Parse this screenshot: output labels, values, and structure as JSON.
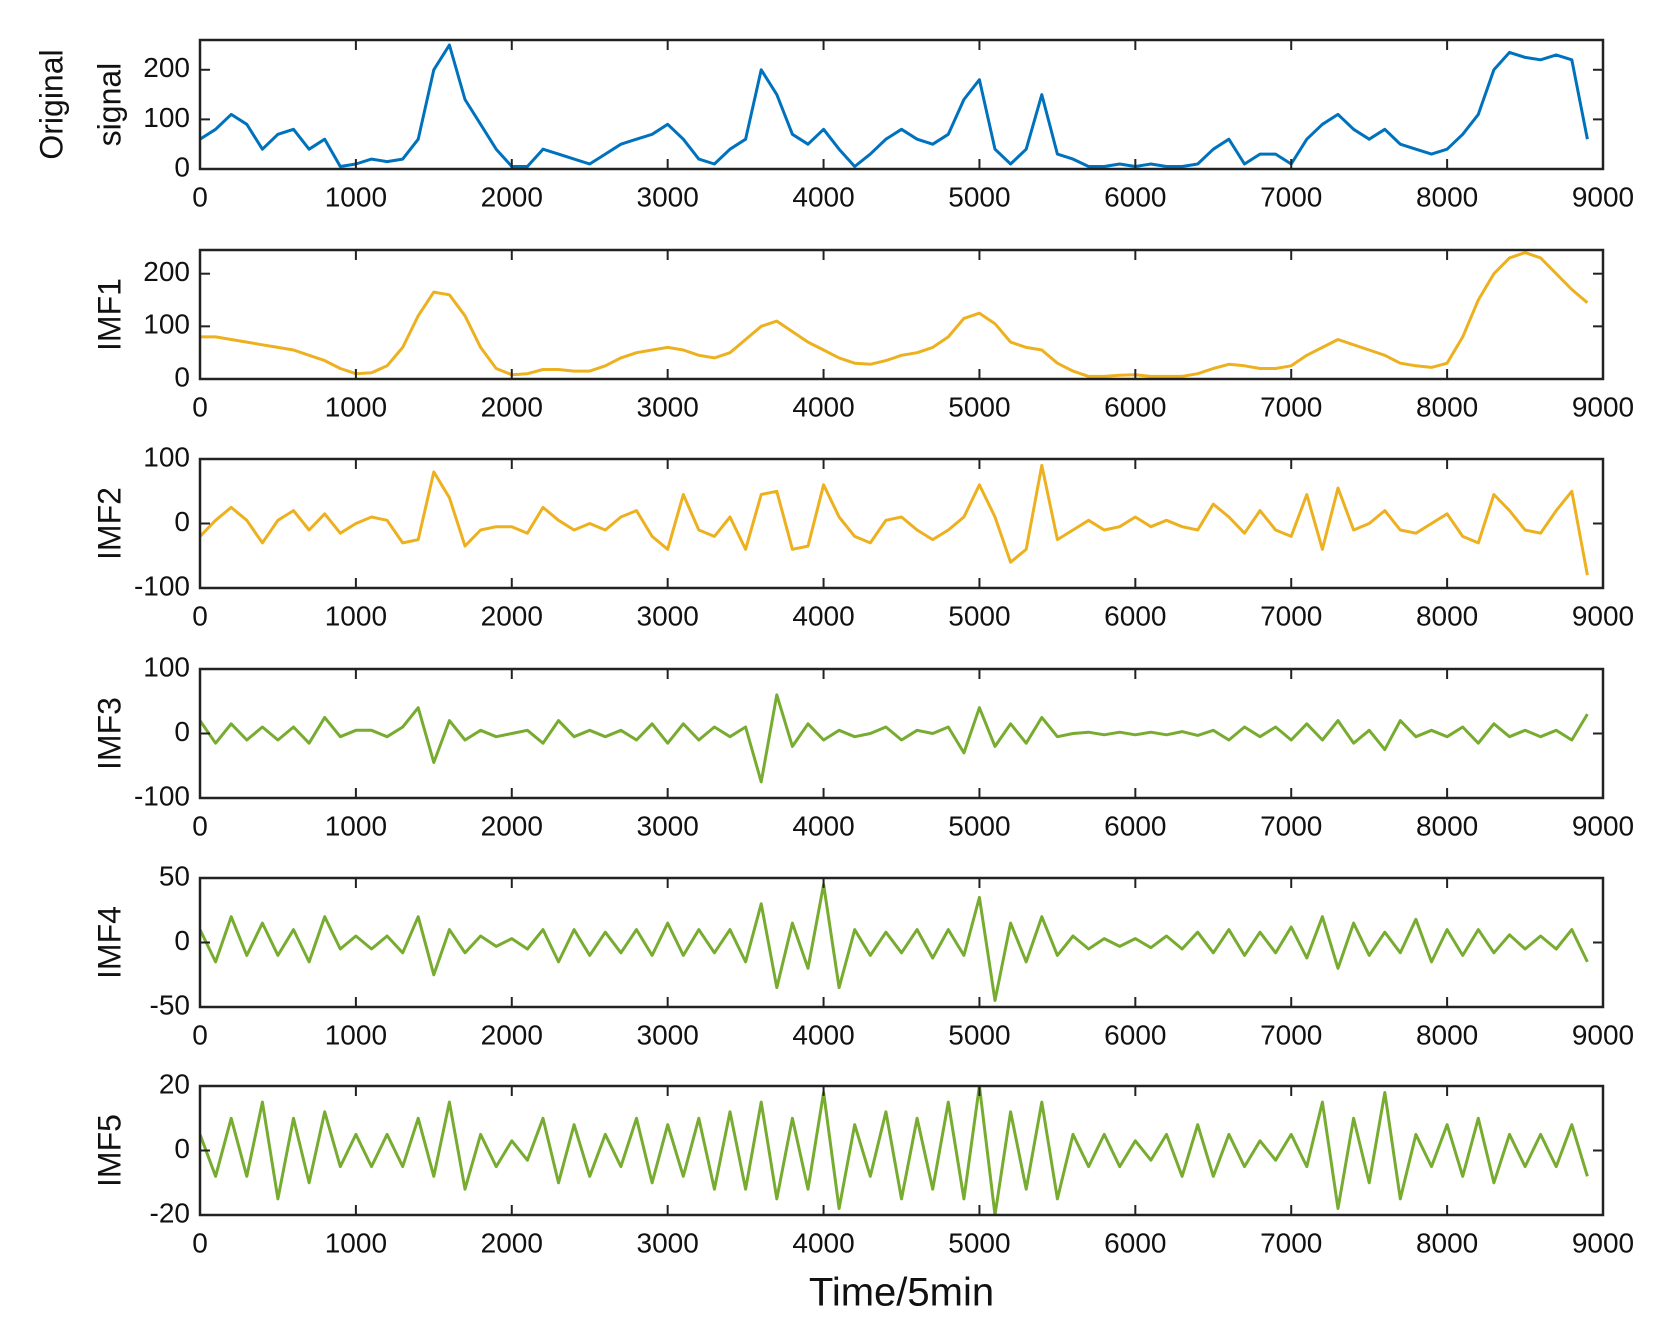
{
  "chart_data": [
    {
      "type": "line",
      "ylabel": [
        "Original",
        "signal"
      ],
      "color": "#0072bd",
      "x": [
        0,
        100,
        200,
        300,
        400,
        500,
        600,
        700,
        800,
        900,
        1000,
        1100,
        1200,
        1300,
        1400,
        1500,
        1600,
        1700,
        1800,
        1900,
        2000,
        2100,
        2200,
        2300,
        2400,
        2500,
        2600,
        2700,
        2800,
        2900,
        3000,
        3100,
        3200,
        3300,
        3400,
        3500,
        3600,
        3700,
        3800,
        3900,
        4000,
        4100,
        4200,
        4300,
        4400,
        4500,
        4600,
        4700,
        4800,
        4900,
        5000,
        5100,
        5200,
        5300,
        5400,
        5500,
        5600,
        5700,
        5800,
        5900,
        6000,
        6100,
        6200,
        6300,
        6400,
        6500,
        6600,
        6700,
        6800,
        6900,
        7000,
        7100,
        7200,
        7300,
        7400,
        7500,
        7600,
        7700,
        7800,
        7900,
        8000,
        8100,
        8200,
        8300,
        8400,
        8500,
        8600,
        8700,
        8800,
        8900
      ],
      "values": [
        60,
        80,
        110,
        90,
        40,
        70,
        80,
        40,
        60,
        5,
        10,
        20,
        15,
        20,
        60,
        200,
        250,
        140,
        90,
        40,
        5,
        5,
        40,
        30,
        20,
        10,
        30,
        50,
        60,
        70,
        90,
        60,
        20,
        10,
        40,
        60,
        200,
        150,
        70,
        50,
        80,
        40,
        5,
        30,
        60,
        80,
        60,
        50,
        70,
        140,
        180,
        40,
        10,
        40,
        150,
        30,
        20,
        5,
        5,
        10,
        5,
        10,
        5,
        5,
        10,
        40,
        60,
        10,
        30,
        30,
        10,
        60,
        90,
        110,
        80,
        60,
        80,
        50,
        40,
        30,
        40,
        70,
        110,
        200,
        235,
        225,
        220,
        230,
        220,
        60
      ],
      "xlim": [
        0,
        9000
      ],
      "xticks": [
        0,
        1000,
        2000,
        3000,
        4000,
        5000,
        6000,
        7000,
        8000,
        9000
      ],
      "ylim": [
        0,
        260
      ],
      "yticks": [
        0,
        100,
        200
      ]
    },
    {
      "type": "line",
      "ylabel": [
        "IMF1"
      ],
      "color": "#edb120",
      "x": [
        0,
        100,
        200,
        300,
        400,
        500,
        600,
        700,
        800,
        900,
        1000,
        1100,
        1200,
        1300,
        1400,
        1500,
        1600,
        1700,
        1800,
        1900,
        2000,
        2100,
        2200,
        2300,
        2400,
        2500,
        2600,
        2700,
        2800,
        2900,
        3000,
        3100,
        3200,
        3300,
        3400,
        3500,
        3600,
        3700,
        3800,
        3900,
        4000,
        4100,
        4200,
        4300,
        4400,
        4500,
        4600,
        4700,
        4800,
        4900,
        5000,
        5100,
        5200,
        5300,
        5400,
        5500,
        5600,
        5700,
        5800,
        5900,
        6000,
        6100,
        6200,
        6300,
        6400,
        6500,
        6600,
        6700,
        6800,
        6900,
        7000,
        7100,
        7200,
        7300,
        7400,
        7500,
        7600,
        7700,
        7800,
        7900,
        8000,
        8100,
        8200,
        8300,
        8400,
        8500,
        8600,
        8700,
        8800,
        8900
      ],
      "values": [
        80,
        80,
        75,
        70,
        65,
        60,
        55,
        45,
        35,
        20,
        10,
        12,
        25,
        60,
        120,
        165,
        160,
        120,
        60,
        20,
        8,
        10,
        18,
        18,
        15,
        15,
        25,
        40,
        50,
        55,
        60,
        55,
        45,
        40,
        50,
        75,
        100,
        110,
        90,
        70,
        55,
        40,
        30,
        28,
        35,
        45,
        50,
        60,
        80,
        115,
        125,
        105,
        70,
        60,
        55,
        30,
        15,
        5,
        5,
        7,
        8,
        5,
        5,
        5,
        10,
        20,
        28,
        25,
        20,
        20,
        25,
        45,
        60,
        75,
        65,
        55,
        45,
        30,
        25,
        22,
        30,
        80,
        150,
        200,
        230,
        240,
        230,
        200,
        170,
        145
      ],
      "xlim": [
        0,
        9000
      ],
      "xticks": [
        0,
        1000,
        2000,
        3000,
        4000,
        5000,
        6000,
        7000,
        8000,
        9000
      ],
      "ylim": [
        0,
        245
      ],
      "yticks": [
        0,
        100,
        200
      ]
    },
    {
      "type": "line",
      "ylabel": [
        "IMF2"
      ],
      "color": "#edb120",
      "x": [
        0,
        100,
        200,
        300,
        400,
        500,
        600,
        700,
        800,
        900,
        1000,
        1100,
        1200,
        1300,
        1400,
        1500,
        1600,
        1700,
        1800,
        1900,
        2000,
        2100,
        2200,
        2300,
        2400,
        2500,
        2600,
        2700,
        2800,
        2900,
        3000,
        3100,
        3200,
        3300,
        3400,
        3500,
        3600,
        3700,
        3800,
        3900,
        4000,
        4100,
        4200,
        4300,
        4400,
        4500,
        4600,
        4700,
        4800,
        4900,
        5000,
        5100,
        5200,
        5300,
        5400,
        5500,
        5600,
        5700,
        5800,
        5900,
        6000,
        6100,
        6200,
        6300,
        6400,
        6500,
        6600,
        6700,
        6800,
        6900,
        7000,
        7100,
        7200,
        7300,
        7400,
        7500,
        7600,
        7700,
        7800,
        7900,
        8000,
        8100,
        8200,
        8300,
        8400,
        8500,
        8600,
        8700,
        8800,
        8900
      ],
      "values": [
        -20,
        5,
        25,
        5,
        -30,
        5,
        20,
        -10,
        15,
        -15,
        0,
        10,
        5,
        -30,
        -25,
        80,
        40,
        -35,
        -10,
        -5,
        -5,
        -15,
        25,
        5,
        -10,
        0,
        -10,
        10,
        20,
        -20,
        -40,
        45,
        -10,
        -20,
        10,
        -40,
        45,
        50,
        -40,
        -35,
        60,
        10,
        -20,
        -30,
        5,
        10,
        -10,
        -25,
        -10,
        10,
        60,
        10,
        -60,
        -40,
        90,
        -25,
        -10,
        5,
        -10,
        -5,
        10,
        -5,
        5,
        -5,
        -10,
        30,
        10,
        -15,
        20,
        -10,
        -20,
        45,
        -40,
        55,
        -10,
        0,
        20,
        -10,
        -15,
        0,
        15,
        -20,
        -30,
        45,
        20,
        -10,
        -15,
        20,
        50,
        -80
      ],
      "xlim": [
        0,
        9000
      ],
      "xticks": [
        0,
        1000,
        2000,
        3000,
        4000,
        5000,
        6000,
        7000,
        8000,
        9000
      ],
      "ylim": [
        -100,
        100
      ],
      "yticks": [
        -100,
        0,
        100
      ]
    },
    {
      "type": "line",
      "ylabel": [
        "IMF3"
      ],
      "color": "#77ac30",
      "x": [
        0,
        100,
        200,
        300,
        400,
        500,
        600,
        700,
        800,
        900,
        1000,
        1100,
        1200,
        1300,
        1400,
        1500,
        1600,
        1700,
        1800,
        1900,
        2000,
        2100,
        2200,
        2300,
        2400,
        2500,
        2600,
        2700,
        2800,
        2900,
        3000,
        3100,
        3200,
        3300,
        3400,
        3500,
        3600,
        3700,
        3800,
        3900,
        4000,
        4100,
        4200,
        4300,
        4400,
        4500,
        4600,
        4700,
        4800,
        4900,
        5000,
        5100,
        5200,
        5300,
        5400,
        5500,
        5600,
        5700,
        5800,
        5900,
        6000,
        6100,
        6200,
        6300,
        6400,
        6500,
        6600,
        6700,
        6800,
        6900,
        7000,
        7100,
        7200,
        7300,
        7400,
        7500,
        7600,
        7700,
        7800,
        7900,
        8000,
        8100,
        8200,
        8300,
        8400,
        8500,
        8600,
        8700,
        8800,
        8900
      ],
      "values": [
        20,
        -15,
        15,
        -10,
        10,
        -10,
        10,
        -15,
        25,
        -5,
        5,
        5,
        -5,
        10,
        40,
        -45,
        20,
        -10,
        5,
        -5,
        0,
        5,
        -15,
        20,
        -5,
        5,
        -5,
        5,
        -10,
        15,
        -15,
        15,
        -10,
        10,
        -5,
        10,
        -75,
        60,
        -20,
        15,
        -10,
        5,
        -5,
        0,
        10,
        -10,
        5,
        0,
        10,
        -30,
        40,
        -20,
        15,
        -15,
        25,
        -5,
        0,
        2,
        -2,
        2,
        -2,
        2,
        -2,
        3,
        -3,
        5,
        -10,
        10,
        -5,
        10,
        -10,
        15,
        -10,
        20,
        -15,
        5,
        -25,
        20,
        -5,
        5,
        -5,
        10,
        -15,
        15,
        -5,
        5,
        -5,
        5,
        -10,
        30
      ],
      "xlim": [
        0,
        9000
      ],
      "xticks": [
        0,
        1000,
        2000,
        3000,
        4000,
        5000,
        6000,
        7000,
        8000,
        9000
      ],
      "ylim": [
        -100,
        100
      ],
      "yticks": [
        -100,
        0,
        100
      ]
    },
    {
      "type": "line",
      "ylabel": [
        "IMF4"
      ],
      "color": "#77ac30",
      "x": [
        0,
        100,
        200,
        300,
        400,
        500,
        600,
        700,
        800,
        900,
        1000,
        1100,
        1200,
        1300,
        1400,
        1500,
        1600,
        1700,
        1800,
        1900,
        2000,
        2100,
        2200,
        2300,
        2400,
        2500,
        2600,
        2700,
        2800,
        2900,
        3000,
        3100,
        3200,
        3300,
        3400,
        3500,
        3600,
        3700,
        3800,
        3900,
        4000,
        4100,
        4200,
        4300,
        4400,
        4500,
        4600,
        4700,
        4800,
        4900,
        5000,
        5100,
        5200,
        5300,
        5400,
        5500,
        5600,
        5700,
        5800,
        5900,
        6000,
        6100,
        6200,
        6300,
        6400,
        6500,
        6600,
        6700,
        6800,
        6900,
        7000,
        7100,
        7200,
        7300,
        7400,
        7500,
        7600,
        7700,
        7800,
        7900,
        8000,
        8100,
        8200,
        8300,
        8400,
        8500,
        8600,
        8700,
        8800,
        8900
      ],
      "values": [
        10,
        -15,
        20,
        -10,
        15,
        -10,
        10,
        -15,
        20,
        -5,
        5,
        -5,
        5,
        -8,
        20,
        -25,
        10,
        -8,
        5,
        -3,
        3,
        -5,
        10,
        -15,
        10,
        -10,
        8,
        -8,
        10,
        -10,
        15,
        -10,
        10,
        -8,
        10,
        -15,
        30,
        -35,
        15,
        -20,
        45,
        -35,
        10,
        -10,
        8,
        -8,
        10,
        -12,
        10,
        -10,
        35,
        -45,
        15,
        -15,
        20,
        -10,
        5,
        -5,
        3,
        -3,
        3,
        -4,
        5,
        -5,
        8,
        -8,
        10,
        -10,
        8,
        -8,
        12,
        -12,
        20,
        -20,
        15,
        -10,
        8,
        -8,
        18,
        -15,
        10,
        -10,
        10,
        -8,
        6,
        -5,
        5,
        -5,
        10,
        -15
      ],
      "xlim": [
        0,
        9000
      ],
      "xticks": [
        0,
        1000,
        2000,
        3000,
        4000,
        5000,
        6000,
        7000,
        8000,
        9000
      ],
      "ylim": [
        -50,
        50
      ],
      "yticks": [
        -50,
        0,
        50
      ]
    },
    {
      "type": "line",
      "ylabel": [
        "IMF5"
      ],
      "xlabel": "Time/5min",
      "color": "#77ac30",
      "x": [
        0,
        100,
        200,
        300,
        400,
        500,
        600,
        700,
        800,
        900,
        1000,
        1100,
        1200,
        1300,
        1400,
        1500,
        1600,
        1700,
        1800,
        1900,
        2000,
        2100,
        2200,
        2300,
        2400,
        2500,
        2600,
        2700,
        2800,
        2900,
        3000,
        3100,
        3200,
        3300,
        3400,
        3500,
        3600,
        3700,
        3800,
        3900,
        4000,
        4100,
        4200,
        4300,
        4400,
        4500,
        4600,
        4700,
        4800,
        4900,
        5000,
        5100,
        5200,
        5300,
        5400,
        5500,
        5600,
        5700,
        5800,
        5900,
        6000,
        6100,
        6200,
        6300,
        6400,
        6500,
        6600,
        6700,
        6800,
        6900,
        7000,
        7100,
        7200,
        7300,
        7400,
        7500,
        7600,
        7700,
        7800,
        7900,
        8000,
        8100,
        8200,
        8300,
        8400,
        8500,
        8600,
        8700,
        8800,
        8900
      ],
      "values": [
        5,
        -8,
        10,
        -8,
        15,
        -15,
        10,
        -10,
        12,
        -5,
        5,
        -5,
        5,
        -5,
        10,
        -8,
        15,
        -12,
        5,
        -5,
        3,
        -3,
        10,
        -10,
        8,
        -8,
        5,
        -5,
        10,
        -10,
        8,
        -8,
        10,
        -12,
        12,
        -12,
        15,
        -15,
        10,
        -12,
        18,
        -18,
        8,
        -8,
        12,
        -15,
        10,
        -12,
        15,
        -15,
        20,
        -20,
        12,
        -12,
        15,
        -15,
        5,
        -5,
        5,
        -5,
        3,
        -3,
        5,
        -8,
        8,
        -8,
        5,
        -5,
        3,
        -3,
        5,
        -5,
        15,
        -18,
        10,
        -10,
        18,
        -15,
        5,
        -5,
        8,
        -8,
        10,
        -10,
        5,
        -5,
        5,
        -5,
        8,
        -8
      ],
      "xlim": [
        0,
        9000
      ],
      "xticks": [
        0,
        1000,
        2000,
        3000,
        4000,
        5000,
        6000,
        7000,
        8000,
        9000
      ],
      "ylim": [
        -20,
        20
      ],
      "yticks": [
        -20,
        0,
        20
      ]
    }
  ]
}
